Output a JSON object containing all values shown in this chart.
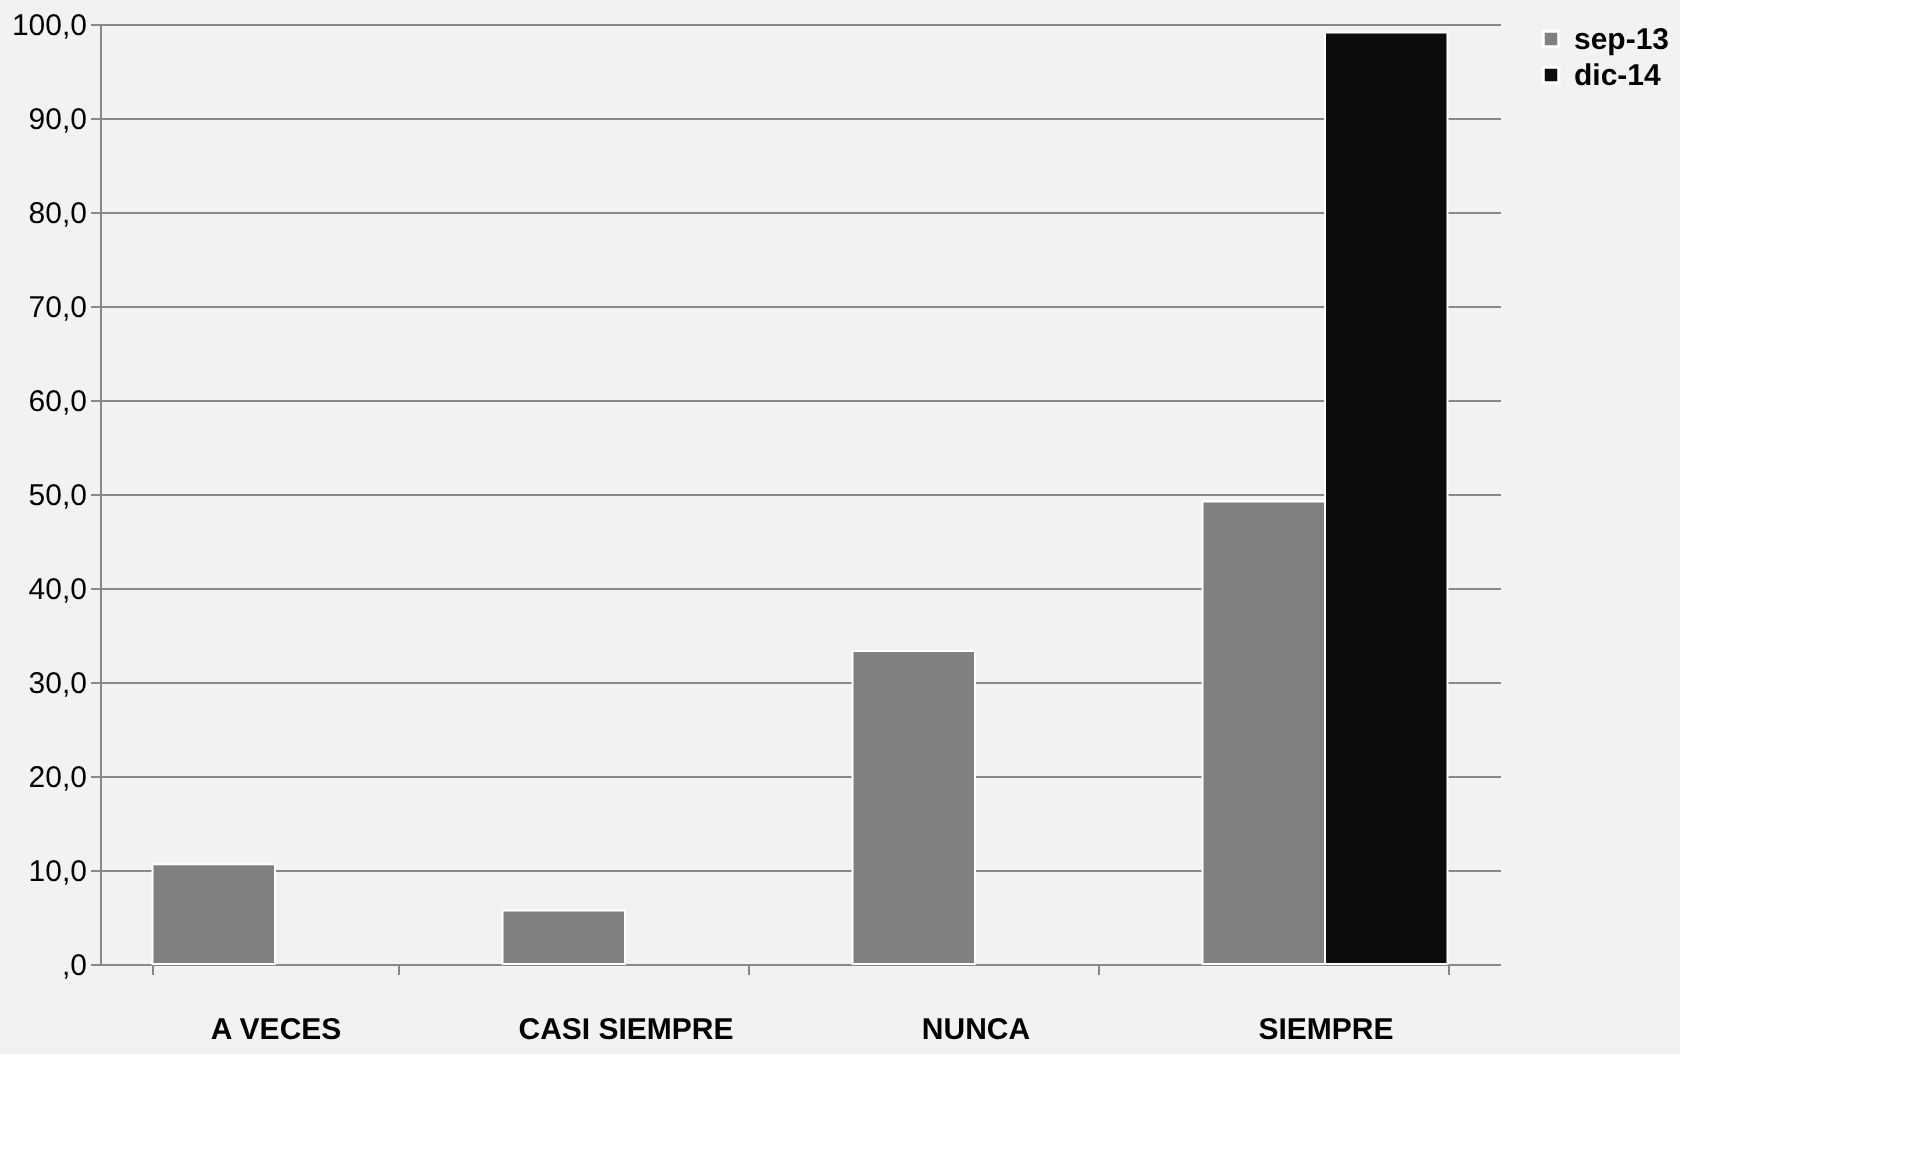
{
  "chart_data": {
    "type": "bar",
    "categories": [
      "A VECES",
      "CASI SIEMPRE",
      "NUNCA",
      "SIEMPRE"
    ],
    "series": [
      {
        "name": "sep-13",
        "color": "#808080",
        "values": [
          10.6,
          5.7,
          33.3,
          49.2
        ]
      },
      {
        "name": "dic-14",
        "color": "#0d0d0d",
        "values": [
          null,
          null,
          null,
          99.1
        ]
      }
    ],
    "ylim": [
      0,
      100
    ],
    "yticks": [
      {
        "value": 0,
        "label": ",0"
      },
      {
        "value": 10,
        "label": "10,0"
      },
      {
        "value": 20,
        "label": "20,0"
      },
      {
        "value": 30,
        "label": "30,0"
      },
      {
        "value": 40,
        "label": "40,0"
      },
      {
        "value": 50,
        "label": "50,0"
      },
      {
        "value": 60,
        "label": "60,0"
      },
      {
        "value": 70,
        "label": "70,0"
      },
      {
        "value": 80,
        "label": "80,0"
      },
      {
        "value": 90,
        "label": "90,0"
      },
      {
        "value": 100,
        "label": "100,0"
      }
    ],
    "grid": "y",
    "legend": "right"
  }
}
